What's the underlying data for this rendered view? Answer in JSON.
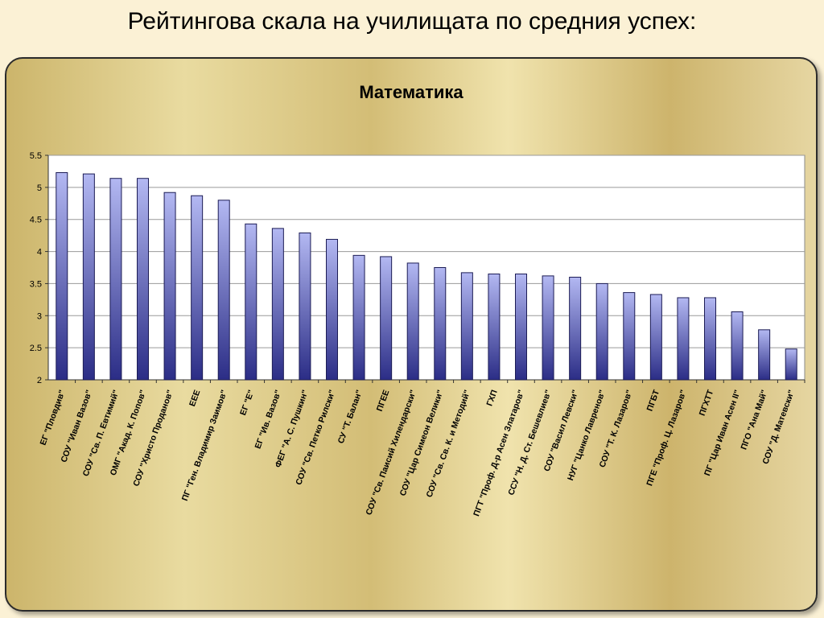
{
  "slide": {
    "title": "Рейтингова скала на училищата по средния успех:"
  },
  "chart_data": {
    "type": "bar",
    "title": "Математика",
    "xlabel": "",
    "ylabel": "",
    "ylim": [
      2,
      5.5
    ],
    "yticks": [
      "2",
      "2.5",
      "3",
      "3.5",
      "4",
      "4.5",
      "5",
      "5.5"
    ],
    "grid": true,
    "legend": "none",
    "colors": {
      "bar_top": "#b3b8f2",
      "bar_bottom": "#2b2d86",
      "plot_bg": "#ffffff",
      "grid": "#9a9a9a"
    },
    "categories": [
      "ЕГ \"Пловдив\"",
      "СОУ \"Иван Вазов\"",
      "СОУ \"Св. П. Евтимий\"",
      "ОМГ \"Акад. К. Попов\"",
      "СОУ \"Христо Проданов\"",
      "ЕЕЕ",
      "ПГ \"Ген. Владимир Заимов\"",
      "ЕГ \"Е\"",
      "ЕГ \"Ив. Вазов\"",
      "ФЕГ \"А. С. Пушкин\"",
      "СОУ \"Св. Петко Рилски\"",
      "СУ \"Т. Балан\"",
      "ПГЕЕ",
      "СОУ \"Св. Паисий Хилендарски\"",
      "СОУ \"Цар Симеон Велики\"",
      "СОУ \"Св. Св. К. и Методий\"",
      "ГХП",
      "ПГТ \"Проф. Д-р Асен Златаров\"",
      "ССУ \"Н. Д. Ст. Бешевлиев\"",
      "СОУ \"Васил Левски\"",
      "НУГ \"Цанко Лавренов\"",
      "СОУ \"Т. К. Лазаров\"",
      "ПГБТ",
      "ПГЕ \"Проф. Ц. Лазаров\"",
      "ПГХТТ",
      "ПГ \"Цар Иван Асен II\"",
      "ПГО \"Ана Май\"",
      "СОУ \"Д. Матевски\""
    ],
    "values": [
      5.23,
      5.21,
      5.14,
      5.14,
      4.92,
      4.87,
      4.8,
      4.43,
      4.36,
      4.29,
      4.19,
      3.94,
      3.92,
      3.82,
      3.75,
      3.67,
      3.65,
      3.65,
      3.62,
      3.6,
      3.5,
      3.36,
      3.33,
      3.28,
      3.28,
      3.06,
      2.78,
      2.48
    ]
  }
}
